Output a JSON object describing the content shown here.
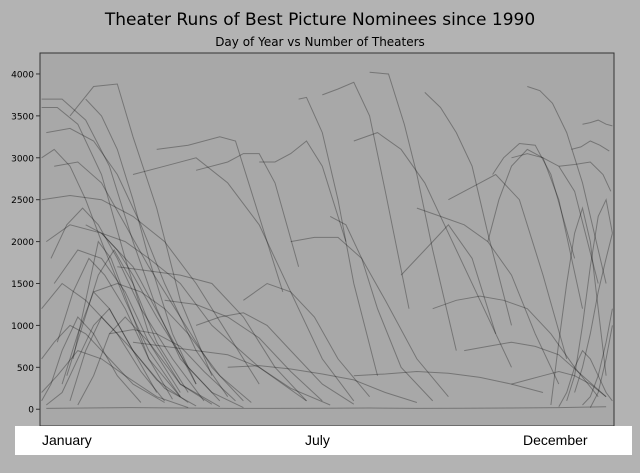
{
  "chart_data": {
    "type": "line",
    "title": "Theater Runs of Best Picture Nominees since 1990",
    "subtitle": "Day of Year vs Number of Theaters",
    "xlabel": "",
    "ylabel": "",
    "xlim": [
      1,
      365
    ],
    "ylim": [
      -200,
      4250
    ],
    "y_ticks": [
      "0",
      "500",
      "1000",
      "1500",
      "2000",
      "2500",
      "3000",
      "3500",
      "4000"
    ],
    "month_labels": {
      "january": "January",
      "july": "July",
      "december": "December"
    },
    "line_color": "#000000",
    "line_opacity": 0.3,
    "background_color": "#a8a8a8",
    "series": [
      {
        "x": [
          2,
          15,
          30,
          45,
          60,
          75,
          90,
          110,
          130
        ],
        "y": [
          3700,
          3700,
          3450,
          2900,
          2000,
          1200,
          600,
          200,
          20
        ]
      },
      {
        "x": [
          2,
          12,
          25,
          40,
          55,
          70,
          90,
          115
        ],
        "y": [
          3600,
          3600,
          3400,
          2800,
          1800,
          900,
          300,
          30
        ]
      },
      {
        "x": [
          20,
          35,
          50,
          60,
          75,
          90,
          110
        ],
        "y": [
          3500,
          3850,
          3880,
          3250,
          2400,
          1300,
          400
        ]
      },
      {
        "x": [
          5,
          20,
          35,
          50,
          65,
          80,
          100,
          120
        ],
        "y": [
          3300,
          3350,
          3200,
          2800,
          2200,
          1500,
          700,
          150
        ]
      },
      {
        "x": [
          30,
          40,
          50,
          60,
          70,
          85,
          100
        ],
        "y": [
          3700,
          3500,
          3100,
          2500,
          1800,
          900,
          300
        ]
      },
      {
        "x": [
          2,
          20,
          40,
          60,
          80,
          100,
          120,
          140
        ],
        "y": [
          2500,
          2550,
          2500,
          2300,
          2000,
          1500,
          900,
          300
        ]
      },
      {
        "x": [
          10,
          25,
          40,
          55,
          70,
          90,
          110,
          130
        ],
        "y": [
          2900,
          2950,
          2700,
          2200,
          1700,
          1100,
          500,
          100
        ]
      },
      {
        "x": [
          5,
          20,
          40,
          60,
          80,
          100
        ],
        "y": [
          2000,
          2200,
          2100,
          1700,
          1000,
          300
        ]
      },
      {
        "x": [
          10,
          25,
          40,
          55,
          70,
          90
        ],
        "y": [
          1500,
          1900,
          1800,
          1400,
          800,
          200
        ]
      },
      {
        "x": [
          2,
          15,
          30,
          45,
          60,
          75,
          95
        ],
        "y": [
          1200,
          1500,
          1300,
          1000,
          700,
          350,
          80
        ]
      },
      {
        "x": [
          15,
          25,
          35,
          45,
          60,
          80,
          100
        ],
        "y": [
          300,
          900,
          1400,
          1200,
          700,
          250,
          40
        ]
      },
      {
        "x": [
          20,
          30,
          40,
          50,
          65,
          80
        ],
        "y": [
          100,
          700,
          1100,
          900,
          450,
          100
        ]
      },
      {
        "x": [
          2,
          10,
          20,
          30,
          45,
          60,
          80
        ],
        "y": [
          600,
          800,
          1000,
          900,
          600,
          300,
          80
        ]
      },
      {
        "x": [
          25,
          35,
          45,
          55,
          70,
          90,
          110
        ],
        "y": [
          50,
          400,
          900,
          1100,
          800,
          300,
          60
        ]
      },
      {
        "x": [
          2,
          12,
          25,
          40,
          55,
          75,
          95
        ],
        "y": [
          200,
          400,
          700,
          600,
          400,
          150,
          20
        ]
      },
      {
        "x": [
          40,
          55,
          70,
          90,
          110,
          140,
          170
        ],
        "y": [
          2100,
          2000,
          1800,
          1500,
          1000,
          500,
          100
        ]
      },
      {
        "x": [
          50,
          70,
          90,
          110,
          130,
          150,
          170
        ],
        "y": [
          1700,
          1650,
          1600,
          1500,
          1100,
          500,
          100
        ]
      },
      {
        "x": [
          60,
          80,
          100,
          120,
          140,
          160,
          180,
          200
        ],
        "y": [
          2800,
          2900,
          3000,
          2700,
          2200,
          1400,
          600,
          100
        ]
      },
      {
        "x": [
          75,
          95,
          115,
          125,
          135,
          155
        ],
        "y": [
          3100,
          3150,
          3250,
          3200,
          2600,
          1400
        ]
      },
      {
        "x": [
          100,
          120,
          130,
          140,
          150,
          165
        ],
        "y": [
          2850,
          2950,
          3050,
          3050,
          2700,
          1700
        ]
      },
      {
        "x": [
          60,
          80,
          100,
          120,
          140,
          160,
          185
        ],
        "y": [
          800,
          750,
          700,
          650,
          500,
          250,
          50
        ]
      },
      {
        "x": [
          80,
          100,
          120,
          140,
          160,
          180
        ],
        "y": [
          1300,
          1250,
          1100,
          850,
          450,
          100
        ]
      },
      {
        "x": [
          140,
          150,
          160,
          170,
          180,
          195
        ],
        "y": [
          2950,
          2950,
          3050,
          3200,
          2900,
          2000
        ]
      },
      {
        "x": [
          165,
          170,
          180,
          190,
          200,
          215
        ],
        "y": [
          3700,
          3720,
          3300,
          2500,
          1500,
          400
        ]
      },
      {
        "x": [
          180,
          190,
          200,
          210,
          220,
          235
        ],
        "y": [
          3750,
          3820,
          3900,
          3500,
          2600,
          1200
        ]
      },
      {
        "x": [
          210,
          222,
          232,
          240,
          250,
          265
        ],
        "y": [
          4020,
          4000,
          3400,
          2800,
          1900,
          700
        ]
      },
      {
        "x": [
          245,
          255,
          265,
          275,
          285,
          300
        ],
        "y": [
          3780,
          3600,
          3300,
          2900,
          2100,
          1000
        ]
      },
      {
        "x": [
          160,
          175,
          190,
          205,
          220,
          240,
          260
        ],
        "y": [
          2000,
          2050,
          2050,
          1800,
          1300,
          600,
          150
        ]
      },
      {
        "x": [
          185,
          195,
          205,
          215,
          230,
          250
        ],
        "y": [
          2300,
          2200,
          1800,
          1200,
          500,
          100
        ]
      },
      {
        "x": [
          200,
          215,
          230,
          245,
          260,
          280,
          300
        ],
        "y": [
          3200,
          3300,
          3100,
          2700,
          2100,
          1300,
          500
        ]
      },
      {
        "x": [
          230,
          240,
          250,
          260,
          275,
          290
        ],
        "y": [
          1600,
          1800,
          2000,
          2200,
          1800,
          900
        ]
      },
      {
        "x": [
          240,
          255,
          270,
          285,
          300,
          315,
          330
        ],
        "y": [
          2400,
          2300,
          2200,
          2000,
          1600,
          900,
          300
        ]
      },
      {
        "x": [
          260,
          270,
          280,
          290,
          305,
          320,
          335
        ],
        "y": [
          2500,
          2600,
          2700,
          2800,
          2500,
          1600,
          600
        ]
      },
      {
        "x": [
          285,
          292,
          300,
          310,
          320,
          330,
          345
        ],
        "y": [
          2000,
          2500,
          2900,
          3100,
          3000,
          2500,
          1200
        ]
      },
      {
        "x": [
          288,
          295,
          305,
          315,
          325,
          340
        ],
        "y": [
          2800,
          3000,
          3170,
          3150,
          2800,
          1800
        ]
      },
      {
        "x": [
          300,
          310,
          320,
          330,
          340,
          355
        ],
        "y": [
          3000,
          3050,
          3000,
          2900,
          2600,
          1500
        ]
      },
      {
        "x": [
          310,
          318,
          326,
          335,
          345,
          360
        ],
        "y": [
          3850,
          3800,
          3650,
          3300,
          2700,
          1500
        ]
      },
      {
        "x": [
          250,
          265,
          280,
          295,
          310,
          325,
          340,
          355
        ],
        "y": [
          1200,
          1300,
          1350,
          1300,
          1200,
          900,
          500,
          150
        ]
      },
      {
        "x": [
          270,
          285,
          300,
          315,
          330,
          345,
          360
        ],
        "y": [
          700,
          750,
          800,
          750,
          650,
          400,
          150
        ]
      },
      {
        "x": [
          330,
          340,
          350,
          358,
          363
        ],
        "y": [
          2900,
          2920,
          2950,
          2800,
          2600
        ]
      },
      {
        "x": [
          338,
          344,
          350,
          356,
          362
        ],
        "y": [
          3100,
          3130,
          3200,
          3150,
          3080
        ]
      },
      {
        "x": [
          345,
          350,
          355,
          360,
          364
        ],
        "y": [
          3400,
          3420,
          3450,
          3400,
          3380
        ]
      },
      {
        "x": [
          325,
          330,
          335,
          340,
          345,
          350,
          355,
          360
        ],
        "y": [
          50,
          800,
          1500,
          2100,
          2400,
          2000,
          1200,
          400
        ]
      },
      {
        "x": [
          335,
          340,
          345,
          350,
          355,
          360,
          364
        ],
        "y": [
          100,
          400,
          1000,
          1700,
          2300,
          2500,
          2100
        ]
      },
      {
        "x": [
          340,
          345,
          350,
          355,
          360,
          364
        ],
        "y": [
          200,
          500,
          900,
          1400,
          1800,
          2100
        ]
      },
      {
        "x": [
          330,
          335,
          340,
          345,
          350,
          355,
          360,
          364
        ],
        "y": [
          30,
          200,
          500,
          700,
          600,
          400,
          200,
          100
        ]
      },
      {
        "x": [
          345,
          350,
          355,
          360,
          364
        ],
        "y": [
          50,
          150,
          400,
          800,
          1200
        ]
      },
      {
        "x": [
          350,
          355,
          360,
          364
        ],
        "y": [
          20,
          200,
          600,
          1000
        ]
      },
      {
        "x": [
          300,
          310,
          320,
          330,
          340,
          350,
          360
        ],
        "y": [
          300,
          350,
          400,
          450,
          400,
          300,
          150
        ]
      },
      {
        "x": [
          200,
          220,
          240,
          260,
          280,
          300,
          320
        ],
        "y": [
          400,
          420,
          450,
          430,
          380,
          300,
          200
        ]
      },
      {
        "x": [
          120,
          140,
          160,
          180,
          200,
          220,
          240
        ],
        "y": [
          500,
          520,
          480,
          420,
          350,
          200,
          80
        ]
      },
      {
        "x": [
          2,
          10,
          20,
          30,
          40,
          55,
          70,
          90
        ],
        "y": [
          3000,
          3100,
          2900,
          2500,
          2000,
          1300,
          700,
          150
        ]
      },
      {
        "x": [
          8,
          18,
          28,
          38,
          50,
          65,
          85,
          105
        ],
        "y": [
          1800,
          2200,
          2400,
          2200,
          1800,
          1200,
          600,
          100
        ]
      },
      {
        "x": [
          12,
          22,
          32,
          42,
          55,
          70,
          90
        ],
        "y": [
          800,
          1400,
          1800,
          1600,
          1200,
          600,
          150
        ]
      },
      {
        "x": [
          18,
          28,
          38,
          48,
          60,
          75,
          95
        ],
        "y": [
          400,
          1000,
          1600,
          1900,
          1500,
          800,
          200
        ]
      },
      {
        "x": [
          2,
          8,
          15,
          25,
          35,
          50,
          65
        ],
        "y": [
          100,
          300,
          700,
          1100,
          900,
          400,
          80
        ]
      },
      {
        "x": [
          5,
          15,
          25,
          35,
          45,
          60,
          75
        ],
        "y": [
          50,
          200,
          600,
          1000,
          1200,
          700,
          200
        ]
      },
      {
        "x": [
          22,
          30,
          38,
          46,
          56,
          70,
          85
        ],
        "y": [
          600,
          1300,
          2000,
          1800,
          1300,
          600,
          120
        ]
      },
      {
        "x": [
          30,
          40,
          50,
          60,
          75,
          95,
          115
        ],
        "y": [
          2200,
          2100,
          1900,
          1600,
          1100,
          500,
          100
        ]
      },
      {
        "x": [
          35,
          50,
          65,
          80,
          95,
          115,
          135
        ],
        "y": [
          1400,
          1500,
          1400,
          1200,
          900,
          400,
          80
        ]
      },
      {
        "x": [
          45,
          60,
          75,
          90,
          105,
          125
        ],
        "y": [
          900,
          950,
          900,
          750,
          450,
          100
        ]
      },
      {
        "x": [
          100,
          115,
          130,
          145,
          160,
          180,
          200
        ],
        "y": [
          1000,
          1100,
          1150,
          1000,
          700,
          300,
          60
        ]
      },
      {
        "x": [
          130,
          145,
          160,
          175,
          190,
          210
        ],
        "y": [
          1300,
          1500,
          1400,
          1100,
          600,
          150
        ]
      },
      {
        "x": [
          5,
          30,
          60,
          90,
          120,
          150,
          180,
          210,
          240,
          270,
          300,
          330,
          360
        ],
        "y": [
          10,
          15,
          20,
          15,
          10,
          10,
          12,
          15,
          10,
          12,
          15,
          20,
          30
        ]
      }
    ]
  }
}
